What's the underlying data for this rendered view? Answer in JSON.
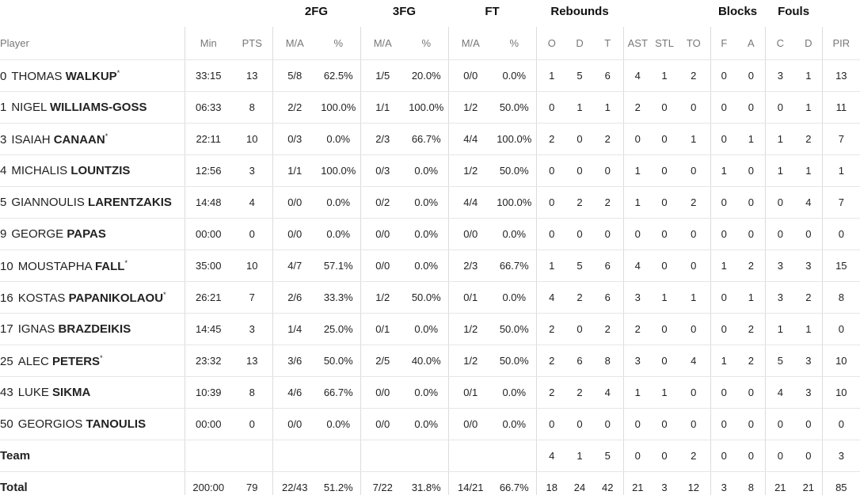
{
  "groups": [
    {
      "label": "2FG",
      "span": 2
    },
    {
      "label": "3FG",
      "span": 2
    },
    {
      "label": "FT",
      "span": 2
    },
    {
      "label": "Rebounds",
      "span": 3
    },
    {
      "label": null,
      "span": 3
    },
    {
      "label": "Blocks",
      "span": 2
    },
    {
      "label": "Fouls",
      "span": 2
    },
    {
      "label": null,
      "span": 1
    }
  ],
  "columns": [
    "Player",
    "Min",
    "PTS",
    "M/A",
    "%",
    "M/A",
    "%",
    "M/A",
    "%",
    "O",
    "D",
    "T",
    "AST",
    "STL",
    "TO",
    "F",
    "A",
    "C",
    "D",
    "PIR"
  ],
  "players": [
    {
      "number": "0",
      "first": "THOMAS",
      "last": "WALKUP",
      "mark": "*",
      "stats": [
        "33:15",
        13,
        "5/8",
        "62.5%",
        "1/5",
        "20.0%",
        "0/0",
        "0.0%",
        1,
        5,
        6,
        4,
        1,
        2,
        0,
        0,
        3,
        1,
        13
      ]
    },
    {
      "number": "1",
      "first": "NIGEL",
      "last": "WILLIAMS-GOSS",
      "stats": [
        "06:33",
        8,
        "2/2",
        "100.0%",
        "1/1",
        "100.0%",
        "1/2",
        "50.0%",
        0,
        1,
        1,
        2,
        0,
        0,
        0,
        0,
        0,
        1,
        11
      ]
    },
    {
      "number": "3",
      "first": "ISAIAH",
      "last": "CANAAN",
      "mark": "*",
      "stats": [
        "22:11",
        10,
        "0/3",
        "0.0%",
        "2/3",
        "66.7%",
        "4/4",
        "100.0%",
        2,
        0,
        2,
        0,
        0,
        1,
        0,
        1,
        1,
        2,
        7
      ]
    },
    {
      "number": "4",
      "first": "MICHALIS",
      "last": "LOUNTZIS",
      "stats": [
        "12:56",
        3,
        "1/1",
        "100.0%",
        "0/3",
        "0.0%",
        "1/2",
        "50.0%",
        0,
        0,
        0,
        1,
        0,
        0,
        1,
        0,
        1,
        1,
        1
      ]
    },
    {
      "number": "5",
      "first": "GIANNOULIS",
      "last": "LARENTZAKIS",
      "stats": [
        "14:48",
        4,
        "0/0",
        "0.0%",
        "0/2",
        "0.0%",
        "4/4",
        "100.0%",
        0,
        2,
        2,
        1,
        0,
        2,
        0,
        0,
        0,
        4,
        7
      ]
    },
    {
      "number": "9",
      "first": "GEORGE",
      "last": "PAPAS",
      "stats": [
        "00:00",
        0,
        "0/0",
        "0.0%",
        "0/0",
        "0.0%",
        "0/0",
        "0.0%",
        0,
        0,
        0,
        0,
        0,
        0,
        0,
        0,
        0,
        0,
        0
      ]
    },
    {
      "number": "10",
      "first": "MOUSTAPHA",
      "last": "FALL",
      "mark": "*",
      "stats": [
        "35:00",
        10,
        "4/7",
        "57.1%",
        "0/0",
        "0.0%",
        "2/3",
        "66.7%",
        1,
        5,
        6,
        4,
        0,
        0,
        1,
        2,
        3,
        3,
        15
      ]
    },
    {
      "number": "16",
      "first": "KOSTAS",
      "last": "PAPANIKOLAOU",
      "mark": "*",
      "stats": [
        "26:21",
        7,
        "2/6",
        "33.3%",
        "1/2",
        "50.0%",
        "0/1",
        "0.0%",
        4,
        2,
        6,
        3,
        1,
        1,
        0,
        1,
        3,
        2,
        8
      ]
    },
    {
      "number": "17",
      "first": "IGNAS",
      "last": "BRAZDEIKIS",
      "stats": [
        "14:45",
        3,
        "1/4",
        "25.0%",
        "0/1",
        "0.0%",
        "1/2",
        "50.0%",
        2,
        0,
        2,
        2,
        0,
        0,
        0,
        2,
        1,
        1,
        0
      ]
    },
    {
      "number": "25",
      "first": "ALEC",
      "last": "PETERS",
      "mark": "*",
      "stats": [
        "23:32",
        13,
        "3/6",
        "50.0%",
        "2/5",
        "40.0%",
        "1/2",
        "50.0%",
        2,
        6,
        8,
        3,
        0,
        4,
        1,
        2,
        5,
        3,
        10
      ]
    },
    {
      "number": "43",
      "first": "LUKE",
      "last": "SIKMA",
      "stats": [
        "10:39",
        8,
        "4/6",
        "66.7%",
        "0/0",
        "0.0%",
        "0/1",
        "0.0%",
        2,
        2,
        4,
        1,
        1,
        0,
        0,
        0,
        4,
        3,
        10
      ]
    },
    {
      "number": "50",
      "first": "GEORGIOS",
      "last": "TANOULIS",
      "stats": [
        "00:00",
        0,
        "0/0",
        "0.0%",
        "0/0",
        "0.0%",
        "0/0",
        "0.0%",
        0,
        0,
        0,
        0,
        0,
        0,
        0,
        0,
        0,
        0,
        0
      ]
    }
  ],
  "team": {
    "label": "Team",
    "stats": [
      null,
      null,
      null,
      null,
      null,
      null,
      null,
      null,
      4,
      1,
      5,
      0,
      0,
      2,
      0,
      0,
      0,
      0,
      3
    ]
  },
  "total": {
    "label": "Total",
    "stats": [
      "200:00",
      79,
      "22/43",
      "51.2%",
      "7/22",
      "31.8%",
      "14/21",
      "66.7%",
      18,
      24,
      42,
      21,
      3,
      12,
      3,
      8,
      21,
      21,
      85
    ]
  }
}
